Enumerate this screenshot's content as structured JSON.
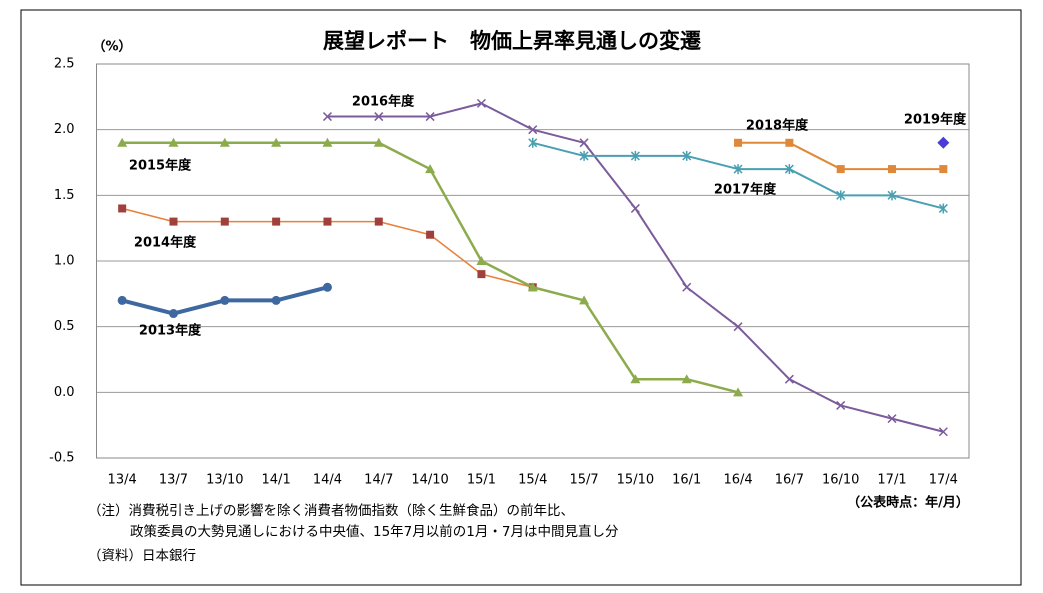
{
  "chart_data": {
    "type": "line",
    "title": "展望レポート　物価上昇率見通しの変遷",
    "y_label": "（%）",
    "x_label": "（公表時点：年/月）",
    "notes": [
      "（注）消費税引き上げの影響を除く消費者物価指数（除く生鮮食品）の前年比、",
      "政策委員の大勢見通しにおける中央値、15年7月以前の1月・7月は中間見直し分",
      "（資料）日本銀行"
    ],
    "categories": [
      "13/4",
      "13/7",
      "13/10",
      "14/1",
      "14/4",
      "14/7",
      "14/10",
      "15/1",
      "15/4",
      "15/7",
      "15/10",
      "16/1",
      "16/4",
      "16/7",
      "16/10",
      "17/1",
      "17/4"
    ],
    "ylim": [
      -0.5,
      2.5
    ],
    "yticks": [
      {
        "value": -0.5,
        "label": "-0.5"
      },
      {
        "value": 0,
        "label": "0.0"
      },
      {
        "value": 0.5,
        "label": "0.5"
      },
      {
        "value": 1,
        "label": "1.0"
      },
      {
        "value": 1.5,
        "label": "1.5"
      },
      {
        "value": 2,
        "label": "2.0"
      },
      {
        "value": 2.5,
        "label": "2.5"
      }
    ],
    "grid": true,
    "series": [
      {
        "name": "2013年度",
        "color": "#3e68a0",
        "marker": "circle",
        "values": [
          0.7,
          0.6,
          0.7,
          0.7,
          0.8,
          null,
          null,
          null,
          null,
          null,
          null,
          null,
          null,
          null,
          null,
          null,
          null
        ]
      },
      {
        "name": "2014年度",
        "color": "#e8803a",
        "marker_color": "#a0403c",
        "marker": "square",
        "values": [
          1.4,
          1.3,
          1.3,
          1.3,
          1.3,
          1.3,
          1.2,
          0.9,
          0.8,
          null,
          null,
          null,
          null,
          null,
          null,
          null,
          null
        ]
      },
      {
        "name": "2015年度",
        "color": "#8bab4c",
        "marker": "triangle",
        "values": [
          1.9,
          1.9,
          1.9,
          1.9,
          1.9,
          1.9,
          1.7,
          1.0,
          0.8,
          0.7,
          0.1,
          0.1,
          0.0,
          null,
          null,
          null,
          null
        ]
      },
      {
        "name": "2016年度",
        "color": "#7b5b9b",
        "marker": "x",
        "values": [
          null,
          null,
          null,
          null,
          2.1,
          2.1,
          2.1,
          2.2,
          2.0,
          1.9,
          1.4,
          0.8,
          0.5,
          0.1,
          -0.1,
          -0.2,
          -0.3
        ]
      },
      {
        "name": "2017年度",
        "color": "#4a9fb0",
        "marker": "star",
        "values": [
          null,
          null,
          null,
          null,
          null,
          null,
          null,
          null,
          1.9,
          1.8,
          1.8,
          1.8,
          1.7,
          1.7,
          1.5,
          1.5,
          1.4
        ]
      },
      {
        "name": "2018年度",
        "color": "#e0883a",
        "marker": "square",
        "values": [
          null,
          null,
          null,
          null,
          null,
          null,
          null,
          null,
          null,
          null,
          null,
          null,
          1.9,
          1.9,
          1.7,
          1.7,
          1.7
        ]
      },
      {
        "name": "2019年度",
        "color": "#4b3bd6",
        "marker": "diamond",
        "values": [
          null,
          null,
          null,
          null,
          null,
          null,
          null,
          null,
          null,
          null,
          null,
          null,
          null,
          null,
          null,
          null,
          1.9
        ]
      }
    ]
  }
}
